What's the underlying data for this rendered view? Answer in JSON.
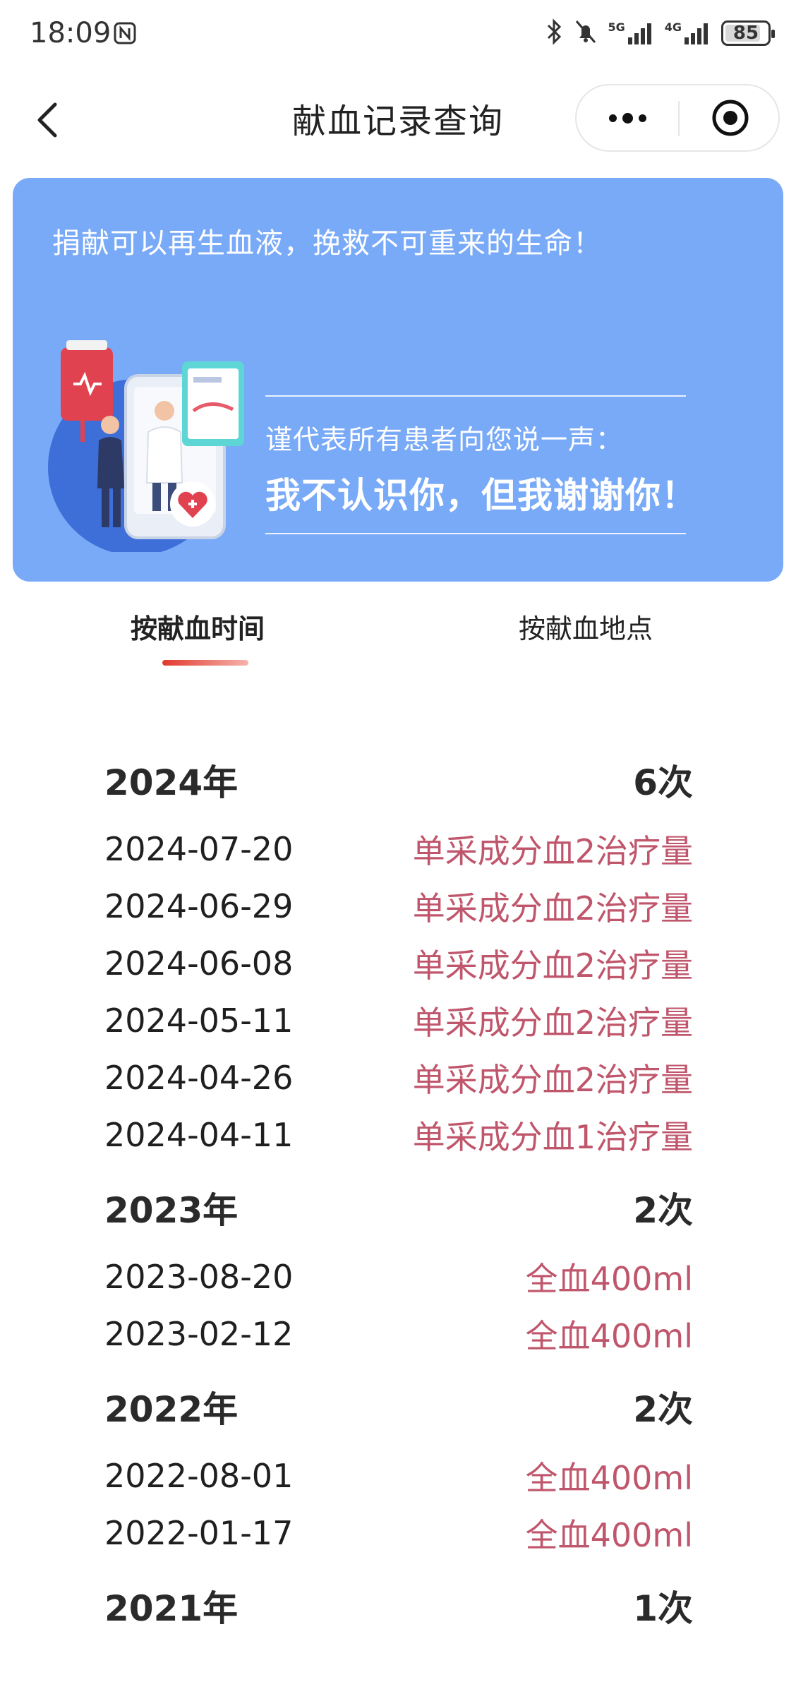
{
  "status_bar": {
    "time": "18:09",
    "battery": "85",
    "battery_level": 0.85,
    "signal_1_label": "5G",
    "signal_2_label": "4G"
  },
  "nav": {
    "title": "献血记录查询"
  },
  "banner": {
    "slogan": "捐献可以再生血液，挽救不可重来的生命！",
    "sub_text": "谨代表所有患者向您说一声：",
    "main_text": "我不认识你，但我谢谢你！",
    "color": "#79aaf7"
  },
  "tabs": [
    {
      "label": "按献血时间",
      "active": true
    },
    {
      "label": "按献血地点",
      "active": false
    }
  ],
  "accent_color": "#c0566c",
  "records": [
    {
      "year": "2024年",
      "count": "6次",
      "items": [
        {
          "date": "2024-07-20",
          "type": "单采成分血2治疗量"
        },
        {
          "date": "2024-06-29",
          "type": "单采成分血2治疗量"
        },
        {
          "date": "2024-06-08",
          "type": "单采成分血2治疗量"
        },
        {
          "date": "2024-05-11",
          "type": "单采成分血2治疗量"
        },
        {
          "date": "2024-04-26",
          "type": "单采成分血2治疗量"
        },
        {
          "date": "2024-04-11",
          "type": "单采成分血1治疗量"
        }
      ]
    },
    {
      "year": "2023年",
      "count": "2次",
      "items": [
        {
          "date": "2023-08-20",
          "type": "全血400ml"
        },
        {
          "date": "2023-02-12",
          "type": "全血400ml"
        }
      ]
    },
    {
      "year": "2022年",
      "count": "2次",
      "items": [
        {
          "date": "2022-08-01",
          "type": "全血400ml"
        },
        {
          "date": "2022-01-17",
          "type": "全血400ml"
        }
      ]
    },
    {
      "year": "2021年",
      "count": "1次",
      "items": []
    }
  ]
}
